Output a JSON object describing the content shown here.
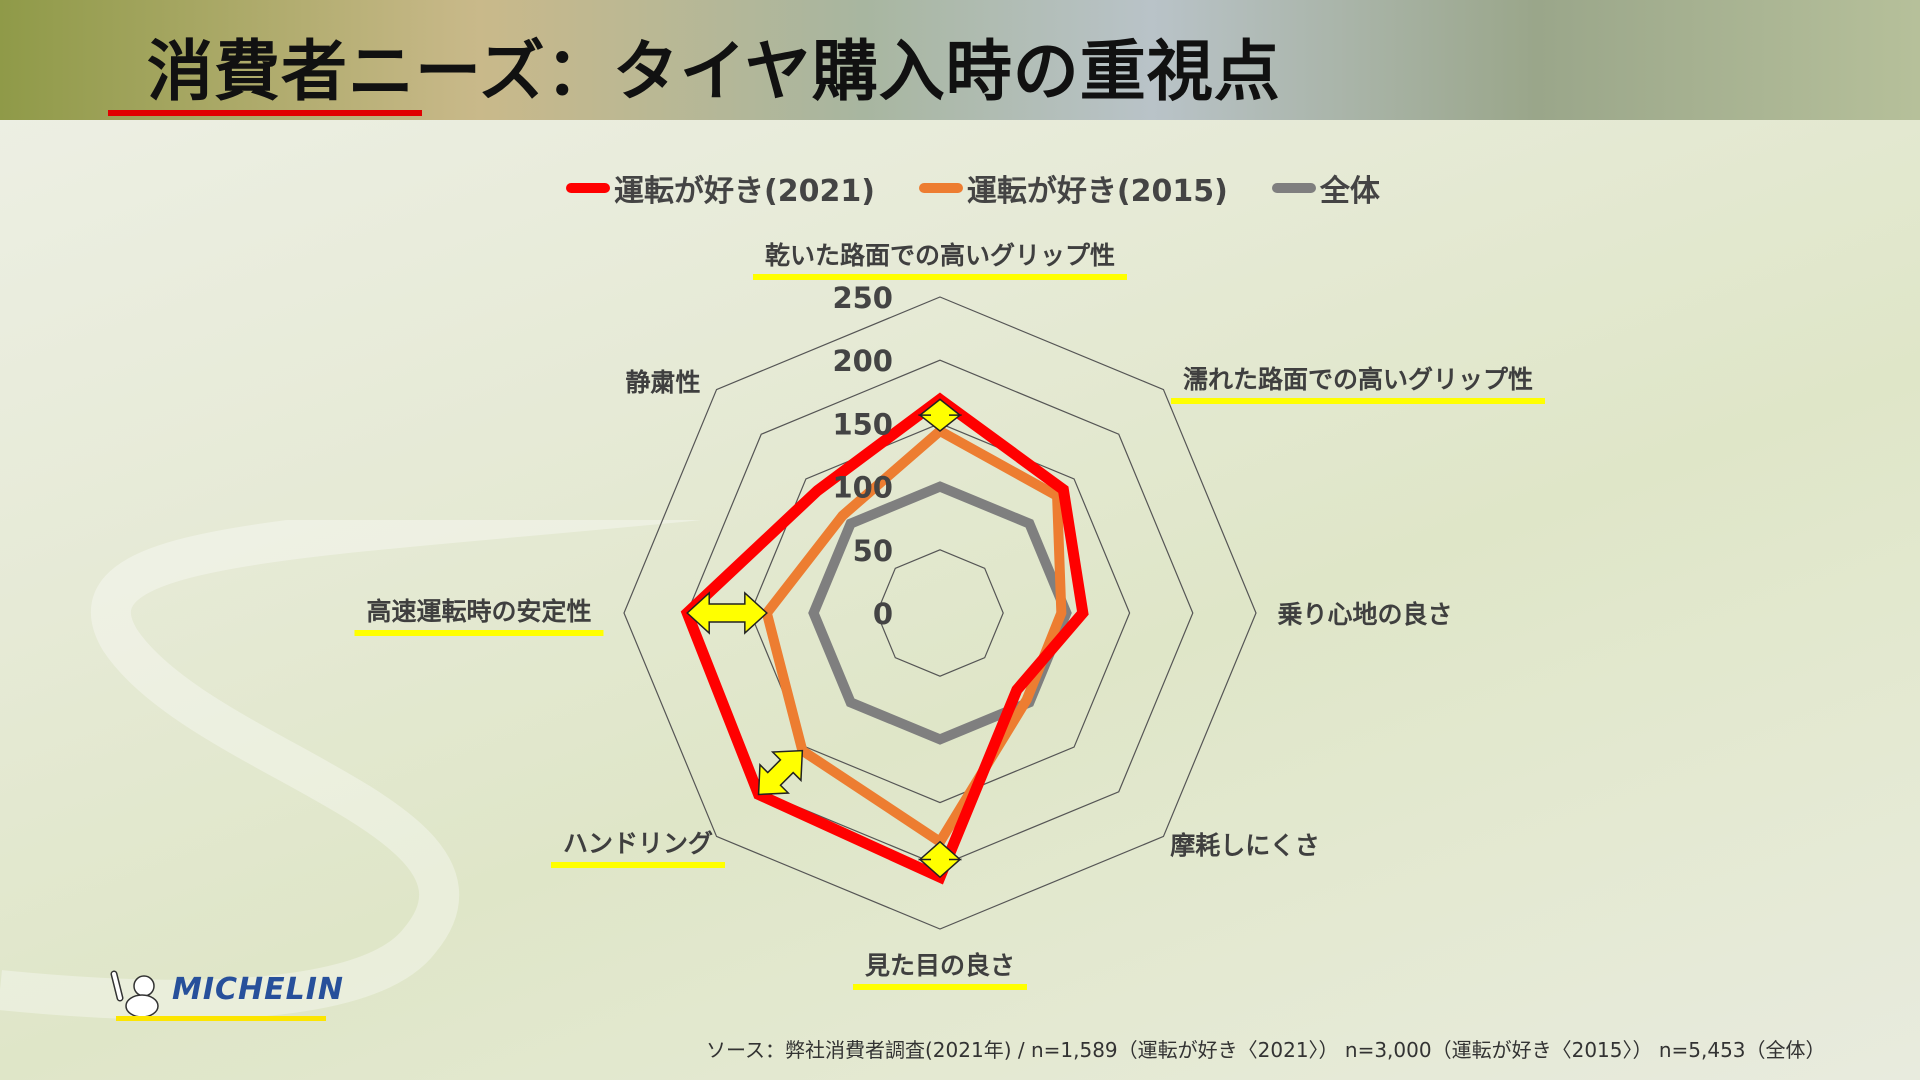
{
  "header": {
    "title": "消費者ニーズ：タイヤ購入時の重視点"
  },
  "legend": [
    {
      "label": "運転が好き(2021)",
      "color": "#ff0000"
    },
    {
      "label": "運転が好き(2015)",
      "color": "#ed7d31"
    },
    {
      "label": "全体",
      "color": "#7f7f7f"
    }
  ],
  "chart_data": {
    "type": "radar",
    "axes": [
      "乾いた路面での高いグリップ性",
      "濡れた路面での高いグリップ性",
      "乗り心地の良さ",
      "摩耗しにくさ",
      "見た目の良さ",
      "ハンドリング",
      "高速運転時の安定性",
      "静粛性"
    ],
    "highlighted_axes": [
      "乾いた路面での高いグリップ性",
      "濡れた路面での高いグリップ性",
      "見た目の良さ",
      "ハンドリング",
      "高速運転時の安定性"
    ],
    "arrow_axes": [
      "乾いた路面での高いグリップ性",
      "見た目の良さ",
      "ハンドリング",
      "高速運転時の安定性"
    ],
    "ticks": [
      "0",
      "50",
      "100",
      "150",
      "200",
      "250"
    ],
    "rlim": [
      0,
      250
    ],
    "grid": true,
    "legend_position": "top",
    "series": [
      {
        "name": "運転が好き(2021)",
        "color": "#ff0000",
        "values": [
          169,
          138,
          113,
          86,
          209,
          203,
          200,
          137
        ]
      },
      {
        "name": "運転が好き(2015)",
        "color": "#ed7d31",
        "values": [
          144,
          131,
          96,
          97,
          181,
          154,
          137,
          109
        ]
      },
      {
        "name": "全体",
        "color": "#7f7f7f",
        "values": [
          100,
          100,
          100,
          100,
          100,
          100,
          100,
          100
        ]
      }
    ]
  },
  "source": "ソース：弊社消費者調査(2021年) / n=1,589（運転が好き〈2021〉） n=3,000（運転が好き〈2015〉） n=5,453（全体）",
  "logo": {
    "text": "MICHELIN"
  }
}
